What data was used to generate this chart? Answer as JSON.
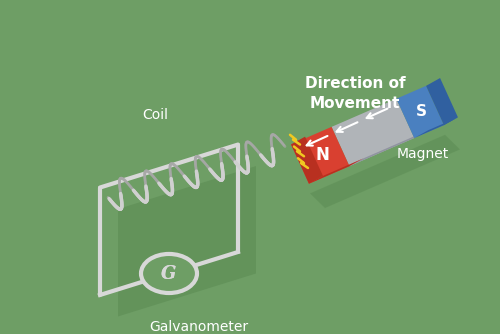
{
  "bg_color": "#6e9e65",
  "wire_color": "#d8d8d8",
  "wire_lw": 3.0,
  "coil_color_front": "#d0d0d0",
  "coil_color_back": "#a8a8a8",
  "shadow_color": "#5a8a52",
  "label_color": "#ffffff",
  "label_fontsize": 10,
  "galv_label": "Galvanometer",
  "coil_label": "Coil",
  "magnet_label": "Magnet",
  "direction_label": "Direction of\nMovement",
  "N_label": "N",
  "S_label": "S",
  "magnet_red": "#d94030",
  "magnet_red_top": "#b83020",
  "magnet_gray": "#b0b4b8",
  "magnet_gray_top": "#9094a0",
  "magnet_blue": "#4a80c0",
  "magnet_blue_top": "#3060a0",
  "bolt_color": "#f0c820",
  "arrow_color": "#ffffff",
  "galv_fill": "#6e9e65",
  "galv_edge": "#d8d8d8"
}
